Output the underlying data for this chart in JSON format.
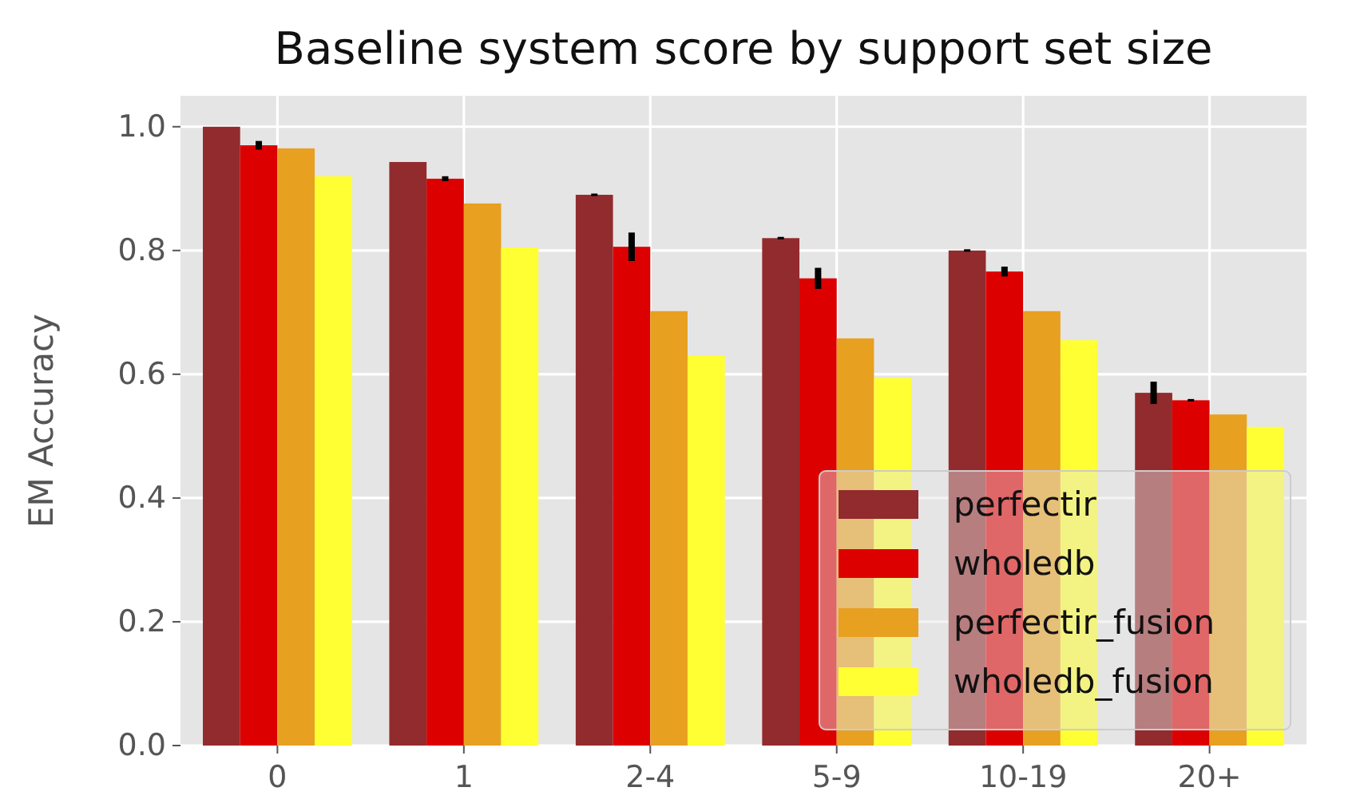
{
  "chart_data": {
    "type": "bar",
    "title": "Baseline system score by support set size",
    "ylabel": "EM Accuracy",
    "categories": [
      "0",
      "1",
      "2-4",
      "5-9",
      "10-19",
      "20+"
    ],
    "series": [
      {
        "name": "perfectir",
        "color": "#922b2d",
        "values": [
          1.0,
          0.943,
          0.89,
          0.82,
          0.8,
          0.57
        ],
        "errors": [
          null,
          null,
          0.002,
          0.002,
          0.002,
          0.018
        ]
      },
      {
        "name": "wholedb",
        "color": "#dd0000",
        "values": [
          0.97,
          0.916,
          0.806,
          0.755,
          0.766,
          0.558
        ],
        "errors": [
          0.007,
          0.004,
          0.023,
          0.017,
          0.008,
          0.002
        ]
      },
      {
        "name": "perfectir_fusion",
        "color": "#e8a020",
        "values": [
          0.965,
          0.876,
          0.702,
          0.658,
          0.702,
          0.535
        ]
      },
      {
        "name": "wholedb_fusion",
        "color": "#ffff33",
        "values": [
          0.92,
          0.805,
          0.63,
          0.594,
          0.655,
          0.515
        ]
      }
    ],
    "ylim": [
      0,
      1.05
    ],
    "yticks": [
      {
        "value": 0,
        "label": "0.0"
      },
      {
        "value": 0.2,
        "label": "0.2"
      },
      {
        "value": 0.4,
        "label": "0.4"
      },
      {
        "value": 0.6,
        "label": "0.6"
      },
      {
        "value": 0.8,
        "label": "0.8"
      },
      {
        "value": 1.0,
        "label": "1.0"
      }
    ],
    "grid": true,
    "legend": "bottom right"
  }
}
